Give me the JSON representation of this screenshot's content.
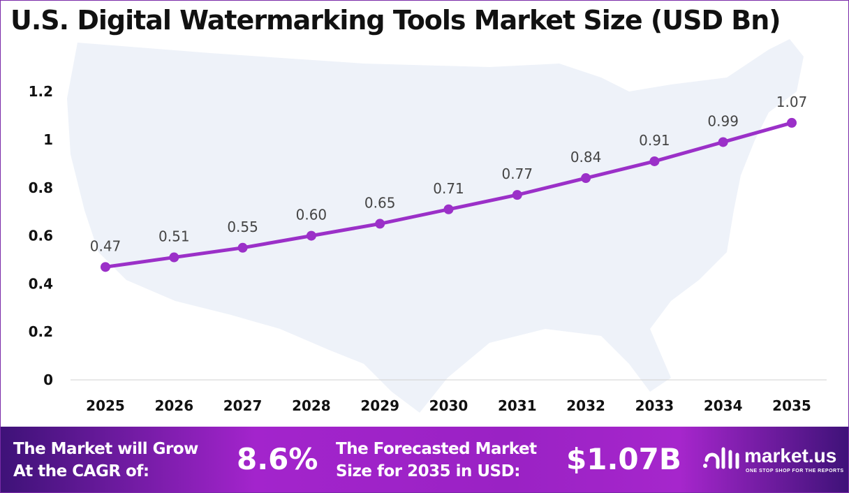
{
  "chart_data": {
    "type": "line",
    "title": "U.S. Digital Watermarking Tools Market Size (USD Bn)",
    "categories": [
      "2025",
      "2026",
      "2027",
      "2028",
      "2029",
      "2030",
      "2031",
      "2032",
      "2033",
      "2034",
      "2035"
    ],
    "values": [
      0.47,
      0.51,
      0.55,
      0.6,
      0.65,
      0.71,
      0.77,
      0.84,
      0.91,
      0.99,
      1.07
    ],
    "data_labels": [
      "0.47",
      "0.51",
      "0.55",
      "0.60",
      "0.65",
      "0.71",
      "0.77",
      "0.84",
      "0.91",
      "0.99",
      "1.07"
    ],
    "yticks": [
      "0",
      "0.2",
      "0.4",
      "0.6",
      "0.8",
      "1",
      "1.2"
    ],
    "ylim": [
      0,
      1.2
    ],
    "grid": false,
    "line_color": "#9b30c8",
    "background": "faint U.S. map silhouette"
  },
  "banner": {
    "cagr_text_1": "The Market will Grow",
    "cagr_text_2": "At the CAGR of:",
    "cagr_value": "8.6%",
    "forecast_text_1": "The Forecasted Market",
    "forecast_text_2": "Size for 2035 in USD:",
    "forecast_value": "$1.07B",
    "logo_name": "market.us",
    "logo_tagline": "ONE STOP SHOP FOR THE REPORTS"
  }
}
